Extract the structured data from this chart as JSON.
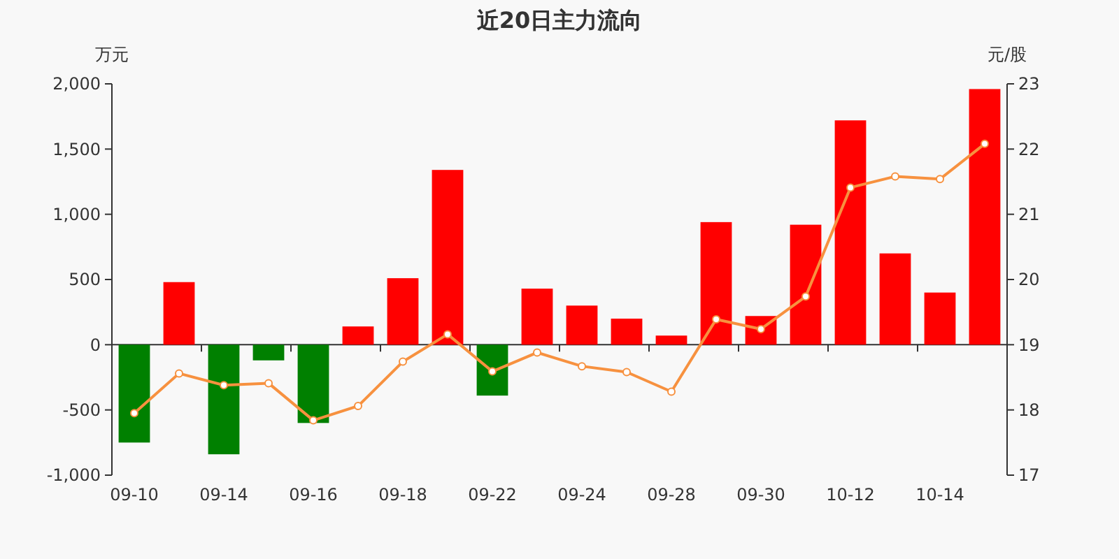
{
  "chart_data": {
    "type": "bar",
    "title": "近20日主力流向",
    "ylabel": "万元",
    "y2label": "元/股",
    "categories": [
      "09-10",
      null,
      "09-14",
      null,
      "09-16",
      null,
      "09-18",
      null,
      "09-22",
      null,
      "09-24",
      null,
      "09-28",
      null,
      "09-30",
      null,
      "10-12",
      null,
      "10-14",
      null
    ],
    "series": [
      {
        "colors": [
          "#008000",
          "#ff0000",
          "#008000",
          "#008000",
          "#008000",
          "#ff0000",
          "#ff0000",
          "#ff0000",
          "#008000",
          "#ff0000",
          "#ff0000",
          "#ff0000",
          "#ff0000",
          "#ff0000",
          "#ff0000",
          "#ff0000",
          "#ff0000",
          "#ff0000",
          "#ff0000",
          "#ff0000"
        ],
        "values": [
          -750,
          480,
          -840,
          -120,
          -600,
          140,
          510,
          1340,
          -390,
          430,
          300,
          200,
          70,
          940,
          220,
          920,
          1720,
          700,
          400,
          1960
        ]
      },
      {
        "type": "line",
        "axis": "y2",
        "color": "#f7913f",
        "values": [
          17.95,
          18.56,
          18.38,
          18.41,
          17.84,
          18.06,
          18.74,
          19.16,
          18.59,
          18.88,
          18.67,
          18.58,
          18.28,
          19.39,
          19.24,
          19.74,
          21.41,
          21.58,
          21.54,
          22.08
        ]
      }
    ],
    "ylim": [
      -1000,
      2000
    ],
    "yticks": [
      {
        "value": -1000,
        "label": "-1,000"
      },
      -500,
      0,
      500,
      {
        "value": 1000,
        "label": "1,000"
      },
      {
        "value": 1500,
        "label": "1,500"
      },
      {
        "value": 2000,
        "label": "2,000"
      }
    ],
    "y2lim": [
      17,
      23
    ],
    "y2ticks": [
      17,
      18,
      19,
      20,
      21,
      22,
      23
    ],
    "marker": "circle"
  }
}
